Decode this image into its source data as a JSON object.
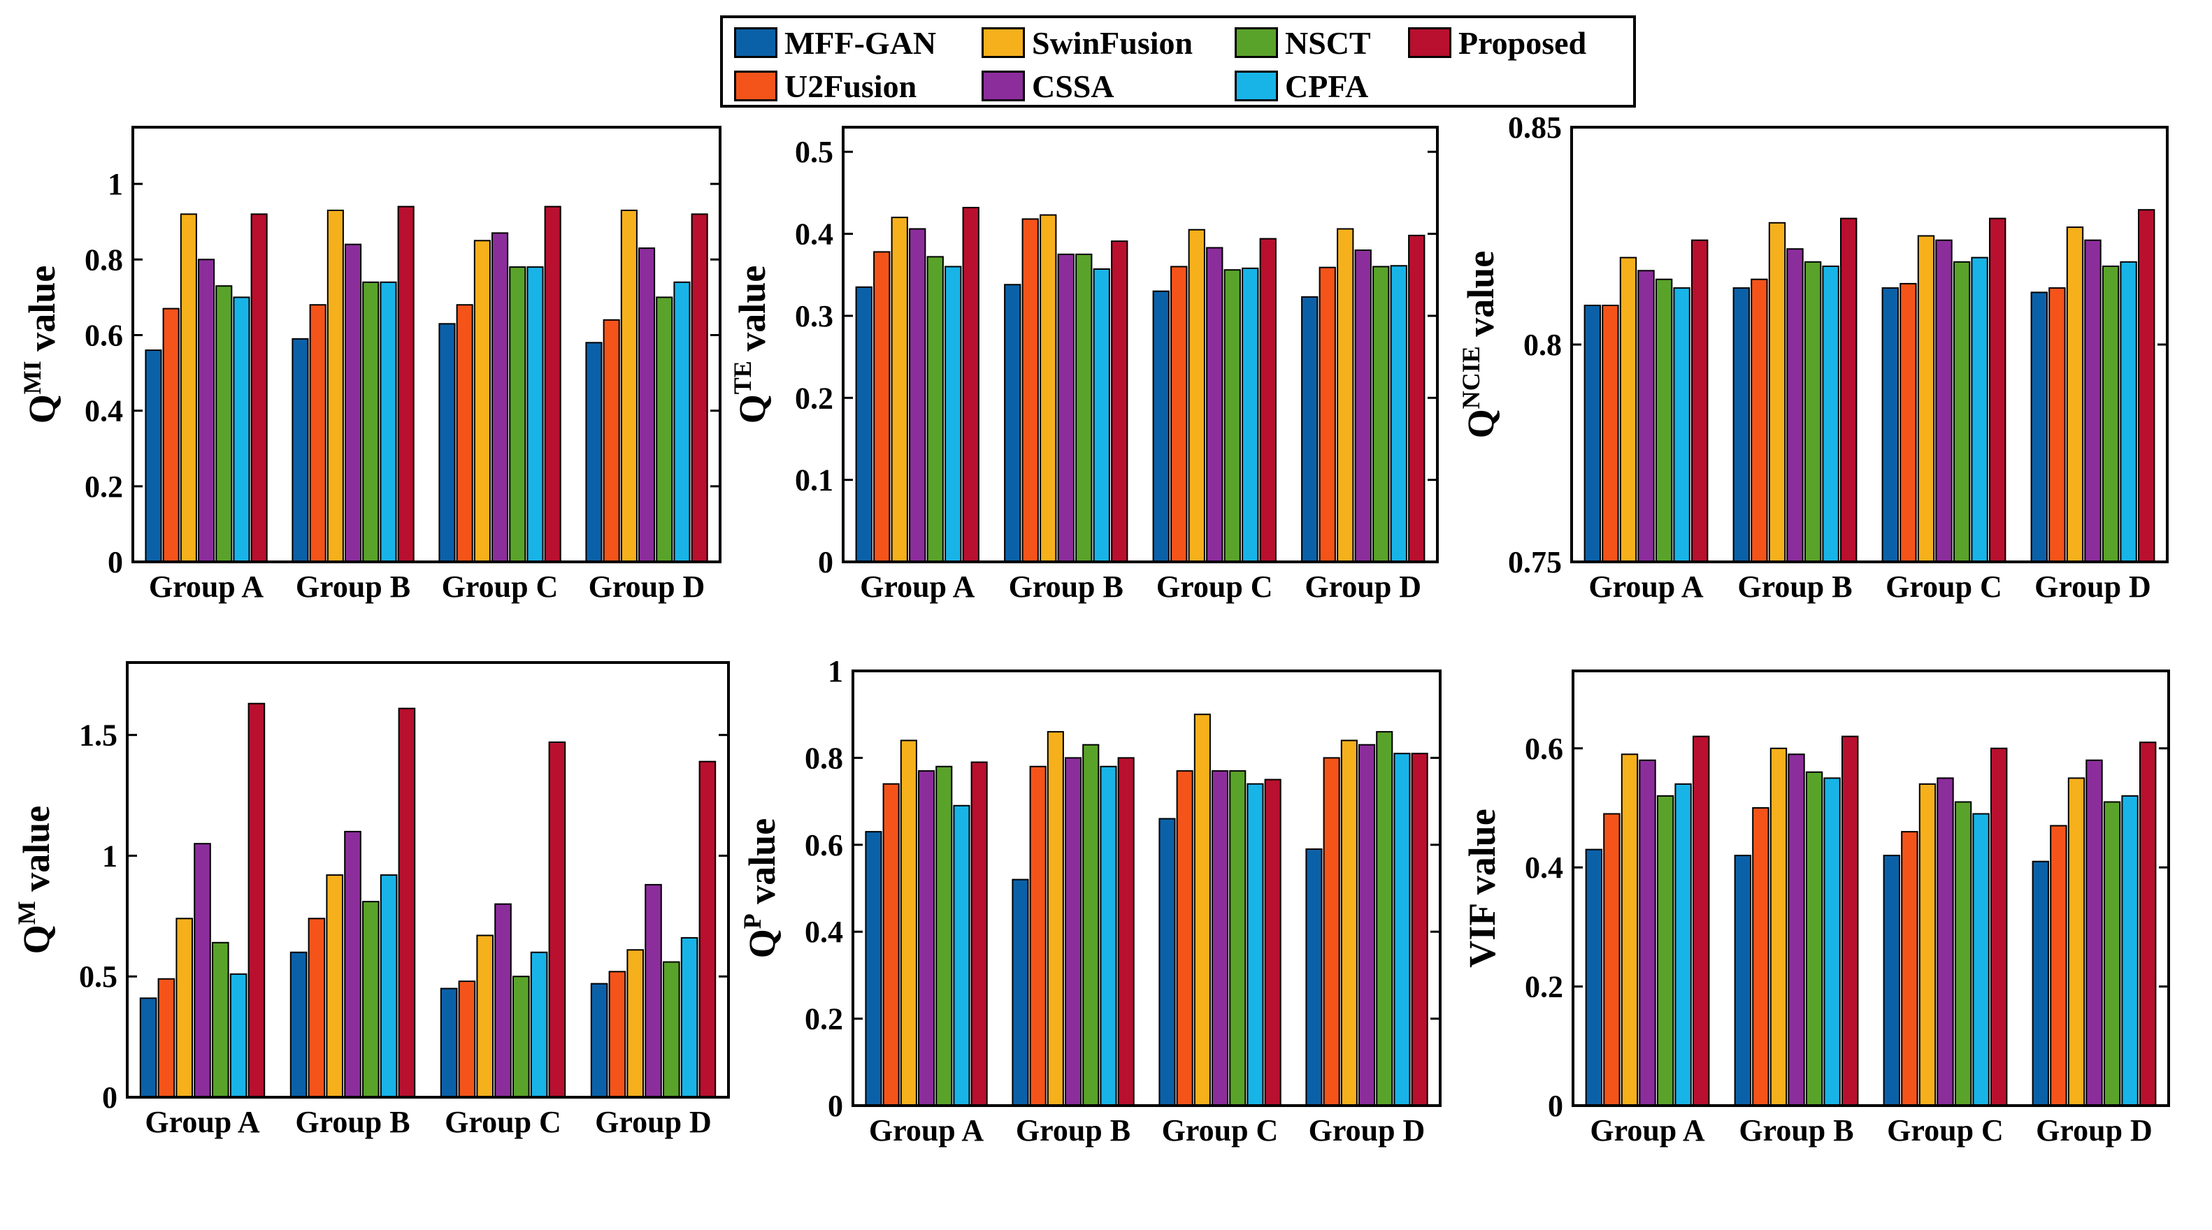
{
  "legend": {
    "items": [
      {
        "label": "MFF-GAN",
        "color": "#0b61a8"
      },
      {
        "label": "SwinFusion",
        "color": "#f5b01c"
      },
      {
        "label": "NSCT",
        "color": "#5aa32a"
      },
      {
        "label": "Proposed",
        "color": "#b8102e"
      },
      {
        "label": "U2Fusion",
        "color": "#f4541a"
      },
      {
        "label": "CSSA",
        "color": "#8c2d9c"
      },
      {
        "label": "CPFA",
        "color": "#18b4e8"
      }
    ]
  },
  "chart_data": [
    {
      "type": "bar",
      "ylabel_main": "Q",
      "ylabel_sup": "MI",
      "ylabel_suffix": " value",
      "categories": [
        "Group A",
        "Group B",
        "Group C",
        "Group D"
      ],
      "ylim": [
        0,
        1.15
      ],
      "yticks": [
        0,
        0.2,
        0.4,
        0.6,
        0.8,
        1
      ],
      "ytick_labels": [
        "0",
        "0.2",
        "0.4",
        "0.6",
        "0.8",
        "1"
      ],
      "series": [
        {
          "name": "MFF-GAN",
          "values": [
            0.56,
            0.59,
            0.63,
            0.58
          ]
        },
        {
          "name": "U2Fusion",
          "values": [
            0.67,
            0.68,
            0.68,
            0.64
          ]
        },
        {
          "name": "SwinFusion",
          "values": [
            0.92,
            0.93,
            0.85,
            0.93
          ]
        },
        {
          "name": "CSSA",
          "values": [
            0.8,
            0.84,
            0.87,
            0.83
          ]
        },
        {
          "name": "NSCT",
          "values": [
            0.73,
            0.74,
            0.78,
            0.7
          ]
        },
        {
          "name": "CPFA",
          "values": [
            0.7,
            0.74,
            0.78,
            0.74
          ]
        },
        {
          "name": "Proposed",
          "values": [
            0.92,
            0.94,
            0.94,
            0.92
          ]
        }
      ]
    },
    {
      "type": "bar",
      "ylabel_main": "Q",
      "ylabel_sup": "TE",
      "ylabel_suffix": " value",
      "categories": [
        "Group A",
        "Group B",
        "Group C",
        "Group D"
      ],
      "ylim": [
        0,
        0.53
      ],
      "yticks": [
        0,
        0.1,
        0.2,
        0.3,
        0.4,
        0.5
      ],
      "ytick_labels": [
        "0",
        "0.1",
        "0.2",
        "0.3",
        "0.4",
        "0.5"
      ],
      "series": [
        {
          "name": "MFF-GAN",
          "values": [
            0.335,
            0.338,
            0.33,
            0.323
          ]
        },
        {
          "name": "U2Fusion",
          "values": [
            0.378,
            0.418,
            0.36,
            0.359
          ]
        },
        {
          "name": "SwinFusion",
          "values": [
            0.42,
            0.423,
            0.405,
            0.406
          ]
        },
        {
          "name": "CSSA",
          "values": [
            0.406,
            0.375,
            0.383,
            0.38
          ]
        },
        {
          "name": "NSCT",
          "values": [
            0.372,
            0.375,
            0.356,
            0.36
          ]
        },
        {
          "name": "CPFA",
          "values": [
            0.36,
            0.357,
            0.358,
            0.361
          ]
        },
        {
          "name": "Proposed",
          "values": [
            0.432,
            0.391,
            0.394,
            0.398
          ]
        }
      ]
    },
    {
      "type": "bar",
      "ylabel_main": "Q",
      "ylabel_sup": "NCIE",
      "ylabel_suffix": " value",
      "categories": [
        "Group A",
        "Group B",
        "Group C",
        "Group D"
      ],
      "ylim": [
        0.75,
        0.85
      ],
      "yticks": [
        0.75,
        0.8,
        0.85
      ],
      "ytick_labels": [
        "0.75",
        "0.8",
        "0.85"
      ],
      "series": [
        {
          "name": "MFF-GAN",
          "values": [
            0.809,
            0.813,
            0.813,
            0.812
          ]
        },
        {
          "name": "U2Fusion",
          "values": [
            0.809,
            0.815,
            0.814,
            0.813
          ]
        },
        {
          "name": "SwinFusion",
          "values": [
            0.82,
            0.828,
            0.825,
            0.827
          ]
        },
        {
          "name": "CSSA",
          "values": [
            0.817,
            0.822,
            0.824,
            0.824
          ]
        },
        {
          "name": "NSCT",
          "values": [
            0.815,
            0.819,
            0.819,
            0.818
          ]
        },
        {
          "name": "CPFA",
          "values": [
            0.813,
            0.818,
            0.82,
            0.819
          ]
        },
        {
          "name": "Proposed",
          "values": [
            0.824,
            0.829,
            0.829,
            0.831
          ]
        }
      ]
    },
    {
      "type": "bar",
      "ylabel_main": "Q",
      "ylabel_sup": "M",
      "ylabel_suffix": " value",
      "categories": [
        "Group A",
        "Group B",
        "Group C",
        "Group D"
      ],
      "ylim": [
        0,
        1.8
      ],
      "yticks": [
        0,
        0.5,
        1,
        1.5
      ],
      "ytick_labels": [
        "0",
        "0.5",
        "1",
        "1.5"
      ],
      "series": [
        {
          "name": "MFF-GAN",
          "values": [
            0.41,
            0.6,
            0.45,
            0.47
          ]
        },
        {
          "name": "U2Fusion",
          "values": [
            0.49,
            0.74,
            0.48,
            0.52
          ]
        },
        {
          "name": "SwinFusion",
          "values": [
            0.74,
            0.92,
            0.67,
            0.61
          ]
        },
        {
          "name": "CSSA",
          "values": [
            1.05,
            1.1,
            0.8,
            0.88
          ]
        },
        {
          "name": "NSCT",
          "values": [
            0.64,
            0.81,
            0.5,
            0.56
          ]
        },
        {
          "name": "CPFA",
          "values": [
            0.51,
            0.92,
            0.6,
            0.66
          ]
        },
        {
          "name": "Proposed",
          "values": [
            1.63,
            1.61,
            1.47,
            1.39
          ]
        }
      ]
    },
    {
      "type": "bar",
      "ylabel_main": "Q",
      "ylabel_sup": "P",
      "ylabel_suffix": " value",
      "categories": [
        "Group A",
        "Group B",
        "Group C",
        "Group D"
      ],
      "ylim": [
        0,
        1
      ],
      "yticks": [
        0,
        0.2,
        0.4,
        0.6,
        0.8,
        1
      ],
      "ytick_labels": [
        "0",
        "0.2",
        "0.4",
        "0.6",
        "0.8",
        "1"
      ],
      "series": [
        {
          "name": "MFF-GAN",
          "values": [
            0.63,
            0.52,
            0.66,
            0.59
          ]
        },
        {
          "name": "U2Fusion",
          "values": [
            0.74,
            0.78,
            0.77,
            0.8
          ]
        },
        {
          "name": "SwinFusion",
          "values": [
            0.84,
            0.86,
            0.9,
            0.84
          ]
        },
        {
          "name": "CSSA",
          "values": [
            0.77,
            0.8,
            0.77,
            0.83
          ]
        },
        {
          "name": "NSCT",
          "values": [
            0.78,
            0.83,
            0.77,
            0.86
          ]
        },
        {
          "name": "CPFA",
          "values": [
            0.69,
            0.78,
            0.74,
            0.81
          ]
        },
        {
          "name": "Proposed",
          "values": [
            0.79,
            0.8,
            0.75,
            0.81
          ]
        }
      ]
    },
    {
      "type": "bar",
      "ylabel_main": "VIF",
      "ylabel_sup": "",
      "ylabel_suffix": " value",
      "categories": [
        "Group A",
        "Group B",
        "Group C",
        "Group D"
      ],
      "ylim": [
        0,
        0.73
      ],
      "yticks": [
        0,
        0.2,
        0.4,
        0.6
      ],
      "ytick_labels": [
        "0",
        "0.2",
        "0.4",
        "0.6"
      ],
      "series": [
        {
          "name": "MFF-GAN",
          "values": [
            0.43,
            0.42,
            0.42,
            0.41
          ]
        },
        {
          "name": "U2Fusion",
          "values": [
            0.49,
            0.5,
            0.46,
            0.47
          ]
        },
        {
          "name": "SwinFusion",
          "values": [
            0.59,
            0.6,
            0.54,
            0.55
          ]
        },
        {
          "name": "CSSA",
          "values": [
            0.58,
            0.59,
            0.55,
            0.58
          ]
        },
        {
          "name": "NSCT",
          "values": [
            0.52,
            0.56,
            0.51,
            0.51
          ]
        },
        {
          "name": "CPFA",
          "values": [
            0.54,
            0.55,
            0.49,
            0.52
          ]
        },
        {
          "name": "Proposed",
          "values": [
            0.62,
            0.62,
            0.6,
            0.61
          ]
        }
      ]
    }
  ]
}
